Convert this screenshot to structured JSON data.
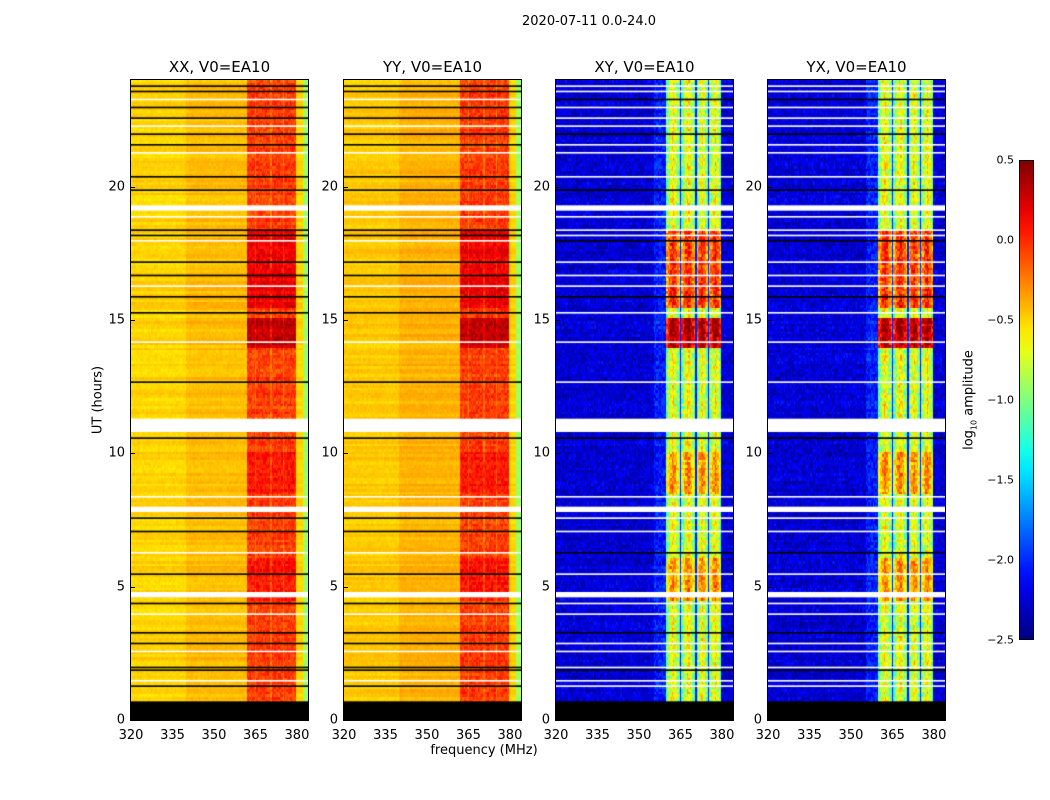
{
  "chart_data": {
    "type": "heatmap",
    "title": "2020-07-11 0.0-24.0",
    "xlabel": "frequency (MHz)",
    "ylabel": "UT (hours)",
    "xlim": [
      320,
      384
    ],
    "ylim": [
      0,
      24
    ],
    "xticks": [
      "320",
      "335",
      "350",
      "365",
      "380"
    ],
    "xtick_values": [
      320,
      335,
      350,
      365,
      380
    ],
    "yticks": [
      "0",
      "5",
      "10",
      "15",
      "20"
    ],
    "ytick_values": [
      0,
      5,
      10,
      15,
      20
    ],
    "colorbar": {
      "label_main": "log",
      "label_sub": "10",
      "label_rest": " amplitude",
      "range": [
        -2.5,
        0.5
      ],
      "ticks": [
        "0.5",
        "0.0",
        "−0.5",
        "−1.0",
        "−1.5",
        "−2.0",
        "−2.5"
      ],
      "tick_values": [
        0.5,
        0.0,
        -0.5,
        -1.0,
        -1.5,
        -2.0,
        -2.5
      ],
      "colormap": "jet"
    },
    "panels": [
      {
        "title": "XX, V0=EA10",
        "kind": "auto",
        "flag_color": "#000000"
      },
      {
        "title": "YY, V0=EA10",
        "kind": "auto",
        "flag_color": "#000000"
      },
      {
        "title": "XY, V0=EA10",
        "kind": "cross",
        "flag_color": "#ffffff"
      },
      {
        "title": "YX, V0=EA10",
        "kind": "cross",
        "flag_color": "#ffffff"
      }
    ],
    "levels": {
      "auto_baseline": -0.45,
      "auto_band": -0.05,
      "auto_edge": -0.8,
      "cross_baseline": -2.25,
      "cross_band": -1.0
    },
    "band_mhz": [
      360,
      380
    ],
    "subbands_mhz": [
      [
        360,
        365
      ],
      [
        365.5,
        370.5
      ],
      [
        371,
        375
      ],
      [
        375.5,
        380
      ]
    ],
    "no_data_hours": [
      0,
      0.7
    ],
    "flagged_hours_thin": [
      1.3,
      1.5,
      1.9,
      2.0,
      2.6,
      2.9,
      3.3,
      4.0,
      4.4,
      5.5,
      6.3,
      7.1,
      7.6,
      8.4,
      10.6,
      12.7,
      14.2,
      15.3,
      15.9,
      16.3,
      16.7,
      17.2,
      18.0,
      18.2,
      18.4,
      18.9,
      19.9,
      20.4,
      21.3,
      21.6,
      22.0,
      22.3,
      22.6,
      23.0,
      23.3,
      23.6,
      23.8
    ],
    "flagged_hours_wide": [
      [
        4.6,
        4.8
      ],
      [
        7.8,
        8.0
      ],
      [
        10.8,
        11.3
      ],
      [
        19.1,
        19.3
      ]
    ],
    "activity_peaks_hours": [
      [
        14.0,
        15.0,
        0.35
      ],
      [
        15.5,
        18.3,
        0.22
      ],
      [
        8.5,
        10.0,
        0.12
      ],
      [
        4.5,
        6.0,
        0.12
      ]
    ]
  }
}
